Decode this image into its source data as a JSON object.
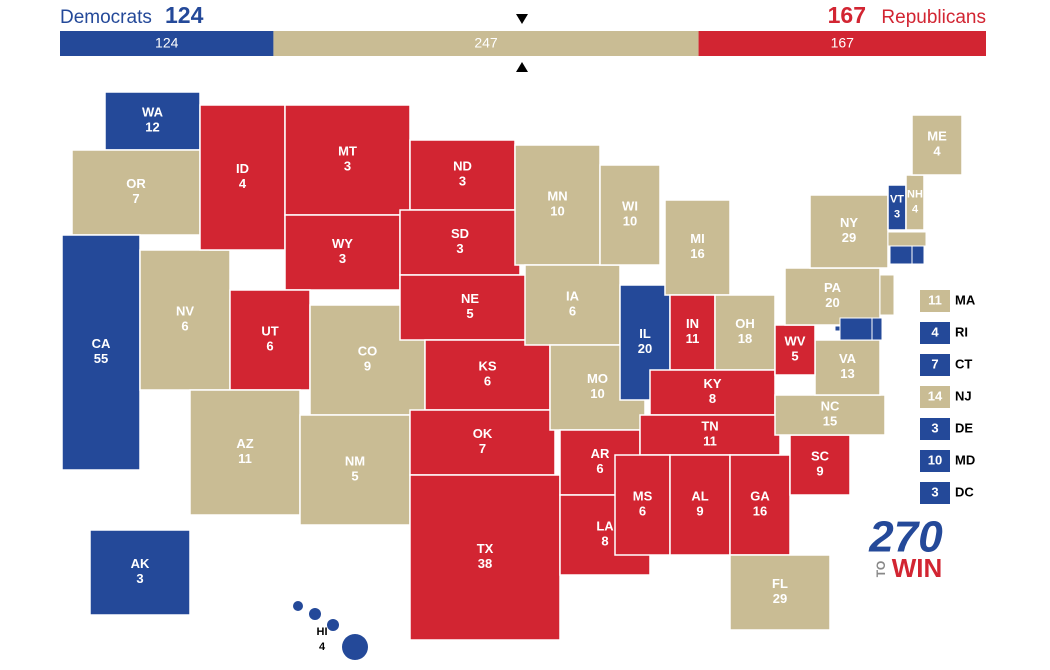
{
  "header": {
    "dem_name": "Democrats",
    "dem_total": 124,
    "toss_total": 247,
    "rep_total": 167,
    "rep_name": "Republicans"
  },
  "colors": {
    "dem": "#244999",
    "toss": "#c9bc94",
    "rep": "#d22532"
  },
  "states": [
    {
      "abbr": "WA",
      "votes": 12,
      "party": "dem"
    },
    {
      "abbr": "OR",
      "votes": 7,
      "party": "toss"
    },
    {
      "abbr": "CA",
      "votes": 55,
      "party": "dem"
    },
    {
      "abbr": "NV",
      "votes": 6,
      "party": "toss"
    },
    {
      "abbr": "ID",
      "votes": 4,
      "party": "rep"
    },
    {
      "abbr": "MT",
      "votes": 3,
      "party": "rep"
    },
    {
      "abbr": "WY",
      "votes": 3,
      "party": "rep"
    },
    {
      "abbr": "UT",
      "votes": 6,
      "party": "rep"
    },
    {
      "abbr": "CO",
      "votes": 9,
      "party": "toss"
    },
    {
      "abbr": "AZ",
      "votes": 11,
      "party": "toss"
    },
    {
      "abbr": "NM",
      "votes": 5,
      "party": "toss"
    },
    {
      "abbr": "ND",
      "votes": 3,
      "party": "rep"
    },
    {
      "abbr": "SD",
      "votes": 3,
      "party": "rep"
    },
    {
      "abbr": "NE",
      "votes": 5,
      "party": "rep"
    },
    {
      "abbr": "KS",
      "votes": 6,
      "party": "rep"
    },
    {
      "abbr": "OK",
      "votes": 7,
      "party": "rep"
    },
    {
      "abbr": "TX",
      "votes": 38,
      "party": "rep"
    },
    {
      "abbr": "MN",
      "votes": 10,
      "party": "toss"
    },
    {
      "abbr": "IA",
      "votes": 6,
      "party": "toss"
    },
    {
      "abbr": "MO",
      "votes": 10,
      "party": "toss"
    },
    {
      "abbr": "AR",
      "votes": 6,
      "party": "rep"
    },
    {
      "abbr": "LA",
      "votes": 8,
      "party": "rep"
    },
    {
      "abbr": "WI",
      "votes": 10,
      "party": "toss"
    },
    {
      "abbr": "IL",
      "votes": 20,
      "party": "dem"
    },
    {
      "abbr": "MI",
      "votes": 16,
      "party": "toss"
    },
    {
      "abbr": "IN",
      "votes": 11,
      "party": "rep"
    },
    {
      "abbr": "OH",
      "votes": 18,
      "party": "toss"
    },
    {
      "abbr": "KY",
      "votes": 8,
      "party": "rep"
    },
    {
      "abbr": "TN",
      "votes": 11,
      "party": "rep"
    },
    {
      "abbr": "MS",
      "votes": 6,
      "party": "rep"
    },
    {
      "abbr": "AL",
      "votes": 9,
      "party": "rep"
    },
    {
      "abbr": "GA",
      "votes": 16,
      "party": "rep"
    },
    {
      "abbr": "FL",
      "votes": 29,
      "party": "toss"
    },
    {
      "abbr": "SC",
      "votes": 9,
      "party": "rep"
    },
    {
      "abbr": "NC",
      "votes": 15,
      "party": "toss"
    },
    {
      "abbr": "VA",
      "votes": 13,
      "party": "toss"
    },
    {
      "abbr": "WV",
      "votes": 5,
      "party": "rep"
    },
    {
      "abbr": "PA",
      "votes": 20,
      "party": "toss"
    },
    {
      "abbr": "NY",
      "votes": 29,
      "party": "toss"
    },
    {
      "abbr": "VT",
      "votes": 3,
      "party": "dem"
    },
    {
      "abbr": "NH",
      "votes": 4,
      "party": "toss"
    },
    {
      "abbr": "ME",
      "votes": 4,
      "party": "toss"
    },
    {
      "abbr": "AK",
      "votes": 3,
      "party": "dem"
    },
    {
      "abbr": "HI",
      "votes": 4,
      "party": "dem"
    }
  ],
  "small_states": [
    {
      "abbr": "MA",
      "votes": 11,
      "party": "toss"
    },
    {
      "abbr": "RI",
      "votes": 4,
      "party": "dem"
    },
    {
      "abbr": "CT",
      "votes": 7,
      "party": "dem"
    },
    {
      "abbr": "NJ",
      "votes": 14,
      "party": "toss"
    },
    {
      "abbr": "DE",
      "votes": 3,
      "party": "dem"
    },
    {
      "abbr": "MD",
      "votes": 10,
      "party": "dem"
    },
    {
      "abbr": "DC",
      "votes": 3,
      "party": "dem"
    }
  ],
  "logo": {
    "number": "270",
    "to": "TO",
    "win": "WIN"
  }
}
